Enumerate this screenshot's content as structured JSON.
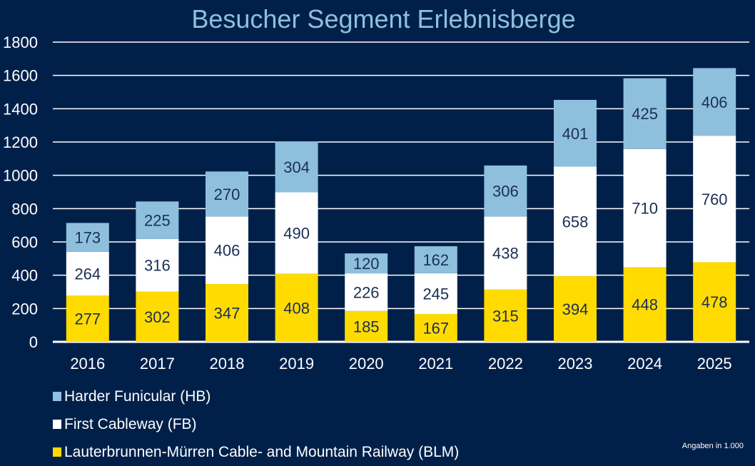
{
  "chart_data": {
    "type": "bar",
    "stacked": true,
    "title": "Besucher Segment Erlebnisberge",
    "xlabel": "",
    "ylabel": "",
    "ylim": [
      0,
      1800
    ],
    "yticks": [
      0,
      200,
      400,
      600,
      800,
      1000,
      1200,
      1400,
      1600,
      1800
    ],
    "grid": true,
    "categories": [
      "2016",
      "2017",
      "2018",
      "2019",
      "2020",
      "2021",
      "2022",
      "2023",
      "2024",
      "2025"
    ],
    "series": [
      {
        "name": "Lauterbrunnen-Mürren Cable- and Mountain Railway (BLM)",
        "color": "#ffdb00",
        "values": [
          277,
          302,
          347,
          408,
          185,
          167,
          315,
          394,
          448,
          478
        ]
      },
      {
        "name": "First Cableway (FB)",
        "color": "#ffffff",
        "values": [
          264,
          316,
          406,
          490,
          226,
          245,
          438,
          658,
          710,
          760
        ]
      },
      {
        "name": "Harder Funicular (HB)",
        "color": "#8ec0dd",
        "values": [
          173,
          225,
          270,
          304,
          120,
          162,
          306,
          401,
          425,
          406
        ]
      }
    ],
    "legend": {
      "position": "bottom-left",
      "entries": [
        "Harder Funicular (HB)",
        "First Cableway (FB)",
        "Lauterbrunnen-Mürren Cable- and Mountain Railway (BLM)"
      ]
    },
    "annotations": [
      "Angaben in 1.000"
    ]
  },
  "legend_items": [
    {
      "label": "Harder Funicular (HB)",
      "color": "#8ec0dd"
    },
    {
      "label": "First Cableway (FB)",
      "color": "#ffffff"
    },
    {
      "label": "Lauterbrunnen-Mürren Cable- and Mountain Railway (BLM)",
      "color": "#ffdb00"
    }
  ],
  "note": "Angaben in 1.000",
  "colors": {
    "background": "#00204a",
    "label_text": "#1b2f55",
    "axis_text": "#ffffff",
    "gridline": "#ffffff"
  }
}
